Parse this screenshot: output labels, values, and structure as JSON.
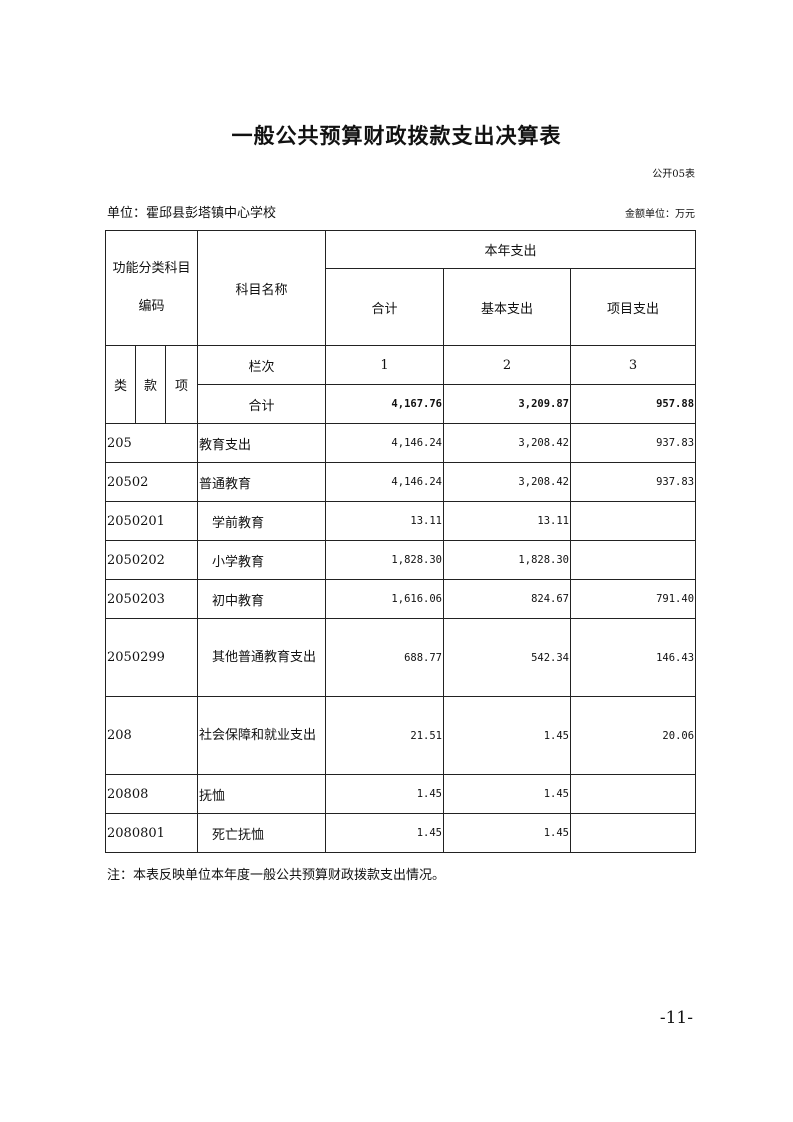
{
  "title": "一般公共预算财政拨款支出决算表",
  "form_code": "公开05表",
  "unit": "单位：霍邱县彭塔镇中心学校",
  "money_unit": "金额单位：万元",
  "header": {
    "func_code": "功能分类科目编码",
    "subject": "科目名称",
    "this_year": "本年支出",
    "total": "合计",
    "basic": "基本支出",
    "project": "项目支出",
    "lei": "类",
    "kuan": "款",
    "xiang": "项",
    "col_label": "栏次",
    "col1": "1",
    "col2": "2",
    "col3": "3"
  },
  "sum_row": {
    "name": "合计",
    "total": "4,167.76",
    "basic": "3,209.87",
    "project": "957.88"
  },
  "rows": [
    {
      "code": "205",
      "name": "教育支出",
      "total": "4,146.24",
      "basic": "3,208.42",
      "project": "937.83"
    },
    {
      "code": "20502",
      "name": "普通教育",
      "total": "4,146.24",
      "basic": "3,208.42",
      "project": "937.83"
    },
    {
      "code": "2050201",
      "name": "学前教育",
      "total": "13.11",
      "basic": "13.11",
      "project": ""
    },
    {
      "code": "2050202",
      "name": "小学教育",
      "total": "1,828.30",
      "basic": "1,828.30",
      "project": ""
    },
    {
      "code": "2050203",
      "name": "初中教育",
      "total": "1,616.06",
      "basic": "824.67",
      "project": "791.40"
    },
    {
      "code": "2050299",
      "name": "其他普通教育支出",
      "total": "688.77",
      "basic": "542.34",
      "project": "146.43"
    },
    {
      "code": "208",
      "name": "社会保障和就业支出",
      "total": "21.51",
      "basic": "1.45",
      "project": "20.06"
    },
    {
      "code": "20808",
      "name": "抚恤",
      "total": "1.45",
      "basic": "1.45",
      "project": ""
    },
    {
      "code": "2080801",
      "name": "死亡抚恤",
      "total": "1.45",
      "basic": "1.45",
      "project": ""
    }
  ],
  "note": "注：本表反映单位本年度一般公共预算财政拨款支出情况。",
  "page_number": "-11-"
}
